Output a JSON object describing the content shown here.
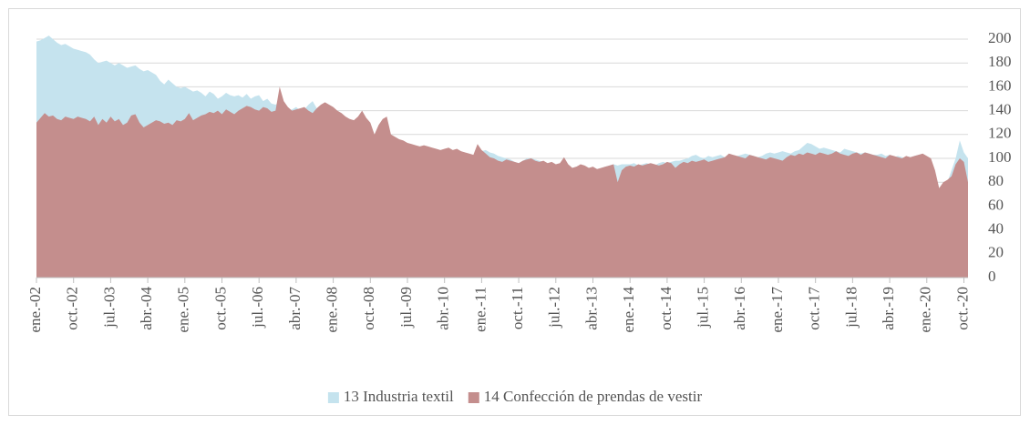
{
  "chart_data": {
    "type": "area",
    "categories": [
      "ene.-02",
      null,
      null,
      null,
      null,
      null,
      null,
      null,
      null,
      "oct.-02",
      null,
      null,
      null,
      null,
      null,
      null,
      null,
      null,
      "jul.-03",
      null,
      null,
      null,
      null,
      null,
      null,
      null,
      null,
      "abr.-04",
      null,
      null,
      null,
      null,
      null,
      null,
      null,
      null,
      "ene.-05",
      null,
      null,
      null,
      null,
      null,
      null,
      null,
      null,
      "oct.-05",
      null,
      null,
      null,
      null,
      null,
      null,
      null,
      null,
      "jul.-06",
      null,
      null,
      null,
      null,
      null,
      null,
      null,
      null,
      "abr.-07",
      null,
      null,
      null,
      null,
      null,
      null,
      null,
      null,
      "ene.-08",
      null,
      null,
      null,
      null,
      null,
      null,
      null,
      null,
      "oct.-08",
      null,
      null,
      null,
      null,
      null,
      null,
      null,
      null,
      "jul.-09",
      null,
      null,
      null,
      null,
      null,
      null,
      null,
      null,
      "abr.-10",
      null,
      null,
      null,
      null,
      null,
      null,
      null,
      null,
      "ene.-11",
      null,
      null,
      null,
      null,
      null,
      null,
      null,
      null,
      "oct.-11",
      null,
      null,
      null,
      null,
      null,
      null,
      null,
      null,
      "jul.-12",
      null,
      null,
      null,
      null,
      null,
      null,
      null,
      null,
      "abr.-13",
      null,
      null,
      null,
      null,
      null,
      null,
      null,
      null,
      "ene.-14",
      null,
      null,
      null,
      null,
      null,
      null,
      null,
      null,
      "oct.-14",
      null,
      null,
      null,
      null,
      null,
      null,
      null,
      null,
      "jul.-15",
      null,
      null,
      null,
      null,
      null,
      null,
      null,
      null,
      "abr.-16",
      null,
      null,
      null,
      null,
      null,
      null,
      null,
      null,
      "ene.-17",
      null,
      null,
      null,
      null,
      null,
      null,
      null,
      null,
      "oct.-17",
      null,
      null,
      null,
      null,
      null,
      null,
      null,
      null,
      "jul.-18",
      null,
      null,
      null,
      null,
      null,
      null,
      null,
      null,
      "abr.-19",
      null,
      null,
      null,
      null,
      null,
      null,
      null,
      null,
      "ene.-20",
      null,
      null,
      null,
      null,
      null,
      null,
      null,
      null,
      "oct.-20",
      null
    ],
    "series": [
      {
        "name": "13 Industria textil",
        "color": "#c5e3ee",
        "values": [
          198,
          199,
          201,
          203,
          200,
          197,
          195,
          196,
          194,
          192,
          191,
          190,
          189,
          187,
          183,
          180,
          181,
          182,
          180,
          178,
          180,
          178,
          176,
          177,
          178,
          175,
          173,
          174,
          172,
          170,
          165,
          162,
          166,
          163,
          160,
          159,
          160,
          158,
          156,
          157,
          155,
          152,
          156,
          154,
          150,
          152,
          155,
          153,
          152,
          153,
          151,
          154,
          150,
          152,
          153,
          148,
          150,
          146,
          145,
          147,
          142,
          140,
          141,
          143,
          140,
          141,
          145,
          148,
          142,
          140,
          138,
          138,
          136,
          133,
          128,
          125,
          118,
          115,
          113,
          112,
          108,
          104,
          98,
          95,
          93,
          91,
          90,
          89,
          91,
          90,
          92,
          94,
          95,
          96,
          95,
          97,
          98,
          100,
          101,
          103,
          102,
          104,
          103,
          105,
          104,
          102,
          103,
          105,
          106,
          107,
          105,
          104,
          102,
          101,
          100,
          99,
          97,
          96,
          98,
          100,
          100,
          99,
          98,
          97,
          96,
          95,
          94,
          93,
          92,
          93,
          92,
          93,
          94,
          93,
          92,
          91,
          90,
          92,
          93,
          94,
          95,
          94,
          95,
          95,
          95,
          96,
          94,
          95,
          96,
          95,
          94,
          96,
          97,
          96,
          97,
          98,
          98,
          99,
          100,
          102,
          103,
          101,
          100,
          102,
          101,
          102,
          103,
          101,
          100,
          101,
          102,
          103,
          104,
          103,
          102,
          101,
          102,
          104,
          105,
          104,
          105,
          106,
          105,
          104,
          106,
          107,
          110,
          113,
          112,
          110,
          108,
          109,
          108,
          107,
          106,
          105,
          108,
          107,
          106,
          105,
          104,
          105,
          104,
          103,
          103,
          104,
          102,
          103,
          101,
          102,
          101,
          100,
          101,
          102,
          103,
          102,
          100,
          98,
          70,
          20,
          50,
          80,
          90,
          100,
          115,
          105,
          100
        ]
      },
      {
        "name": "14 Confección de prendas de vestir",
        "color": "#c48e8d",
        "values": [
          130,
          134,
          138,
          135,
          136,
          133,
          132,
          135,
          134,
          133,
          135,
          134,
          133,
          131,
          135,
          128,
          133,
          130,
          135,
          131,
          133,
          128,
          130,
          136,
          137,
          130,
          126,
          128,
          130,
          132,
          131,
          129,
          130,
          128,
          132,
          131,
          133,
          138,
          132,
          134,
          136,
          137,
          139,
          138,
          140,
          137,
          141,
          139,
          137,
          140,
          142,
          144,
          143,
          141,
          140,
          143,
          142,
          139,
          140,
          160,
          148,
          143,
          140,
          141,
          142,
          143,
          140,
          138,
          142,
          145,
          147,
          145,
          143,
          140,
          138,
          135,
          133,
          132,
          135,
          140,
          134,
          130,
          120,
          128,
          133,
          135,
          120,
          118,
          116,
          115,
          113,
          112,
          111,
          110,
          111,
          110,
          109,
          108,
          107,
          108,
          109,
          107,
          108,
          106,
          105,
          104,
          103,
          112,
          107,
          104,
          101,
          100,
          98,
          97,
          99,
          98,
          97,
          96,
          98,
          99,
          100,
          98,
          97,
          98,
          96,
          97,
          95,
          96,
          101,
          95,
          92,
          93,
          95,
          94,
          92,
          93,
          91,
          92,
          93,
          94,
          95,
          80,
          90,
          93,
          94,
          93,
          95,
          94,
          95,
          96,
          95,
          94,
          95,
          97,
          96,
          92,
          95,
          97,
          96,
          98,
          97,
          98,
          99,
          97,
          98,
          99,
          100,
          101,
          104,
          103,
          102,
          101,
          100,
          103,
          102,
          101,
          100,
          99,
          101,
          100,
          99,
          98,
          101,
          103,
          102,
          104,
          103,
          105,
          104,
          103,
          105,
          104,
          103,
          104,
          106,
          104,
          103,
          102,
          104,
          105,
          103,
          105,
          104,
          103,
          102,
          101,
          100,
          103,
          102,
          101,
          100,
          102,
          101,
          102,
          103,
          104,
          102,
          100,
          90,
          75,
          80,
          82,
          85,
          95,
          100,
          97,
          80
        ]
      }
    ],
    "ylim": [
      0,
      200
    ],
    "yticks": [
      0,
      20,
      40,
      60,
      80,
      100,
      120,
      140,
      160,
      180,
      200
    ],
    "grid": true,
    "legend": "bottom"
  }
}
